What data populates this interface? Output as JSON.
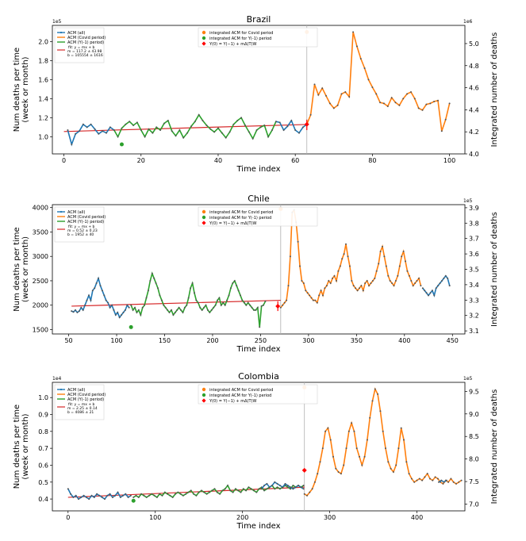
{
  "chart_data": [
    {
      "type": "line",
      "title": "Brazil",
      "xlabel": "Time index",
      "ylabel_lines": [
        "Num deaths per time",
        "(week or month)"
      ],
      "y2label": "Integrated number of deaths",
      "y_scale_label": "1e5",
      "y2_scale_label": "1e6",
      "xlim": [
        -3,
        104
      ],
      "ylim": [
        0.82,
        2.17
      ],
      "y2lim": [
        4.0,
        5.165
      ],
      "xticks": [
        0,
        20,
        40,
        60,
        80,
        100
      ],
      "yticks": [
        1.0,
        1.2,
        1.4,
        1.6,
        1.8,
        2.0
      ],
      "ytick_labels": [
        "1.0",
        "1.2",
        "1.4",
        "1.6",
        "1.8",
        "2.0"
      ],
      "y2ticks": [
        4.0,
        4.2,
        4.4,
        4.6,
        4.8,
        5.0
      ],
      "y2tick_labels": [
        "4.0",
        "4.2",
        "4.4",
        "4.6",
        "4.8",
        "5.0"
      ],
      "covid_start": 63,
      "legend_left": [
        "ACM (all)",
        "ACM (Covid period)",
        "ACM (Y(-1) period)"
      ],
      "fit_lines": [
        "fit: y = mx + b",
        "m = 117.2 ± 43.98",
        "b = 105554 ± 1616"
      ],
      "legend_center": [
        "integrated ACM for Covid period",
        "integrated ACM for Y(-1) period",
        "Y(0) = Y(−1) + mΔ(T)W"
      ],
      "series": [
        {
          "name": "ACM (all)",
          "x_start": 1,
          "values": [
            1.07,
            0.92,
            1.03,
            1.06,
            1.13,
            1.1,
            1.13,
            1.08,
            1.03,
            1.06,
            1.04,
            1.1,
            1.07
          ]
        },
        {
          "name": "ACM (Y(-1) period)",
          "x_start": 13,
          "values": [
            1.07,
            1.0,
            1.09,
            1.13,
            1.16,
            1.12,
            1.15,
            1.07,
            1.0,
            1.08,
            1.04,
            1.1,
            1.07,
            1.14,
            1.17,
            1.06,
            1.01,
            1.07,
            0.99,
            1.04,
            1.11,
            1.16,
            1.23,
            1.17,
            1.12,
            1.08,
            1.05,
            1.09,
            1.04,
            0.99,
            1.05,
            1.13,
            1.17,
            1.2,
            1.12,
            1.05,
            0.98,
            1.07,
            1.1,
            1.12,
            1.0,
            1.07,
            1.16
          ]
        },
        {
          "name": "ACM (all) tail",
          "x_start": 55,
          "values": [
            1.16,
            1.15,
            1.07,
            1.11,
            1.17,
            1.07,
            1.04,
            1.1,
            1.13
          ]
        },
        {
          "name": "ACM (Covid period)",
          "x_start": 63,
          "values": [
            1.13,
            1.23,
            1.55,
            1.44,
            1.51,
            1.43,
            1.35,
            1.3,
            1.33,
            1.45,
            1.47,
            1.42,
            2.1,
            1.95,
            1.82,
            1.72,
            1.6,
            1.52,
            1.45,
            1.36,
            1.35,
            1.32,
            1.41,
            1.36,
            1.33,
            1.4,
            1.45,
            1.47,
            1.4,
            1.3,
            1.28,
            1.34,
            1.35,
            1.37,
            1.38,
            1.06,
            1.18,
            1.35
          ]
        }
      ],
      "fit": {
        "x0": 0,
        "y0": 1.055,
        "x1": 63,
        "y1": 1.129
      },
      "integrated_covid": {
        "x": 63,
        "y": 2.1
      },
      "integrated_prev": {
        "x": 15,
        "y": 0.92
      },
      "y0_point": {
        "x": 63,
        "y": 1.13
      },
      "y0_bar": {
        "x": 63,
        "y0": 1.07,
        "y1": 1.18
      }
    },
    {
      "type": "line",
      "title": "Chile",
      "xlabel": "Time index",
      "ylabel_lines": [
        "Num deaths per time",
        "(week or month)"
      ],
      "y2label": "Integrated number of deaths",
      "y_scale_label": "",
      "y2_scale_label": "1e5",
      "xlim": [
        33,
        463
      ],
      "ylim": [
        1410,
        4060
      ],
      "y2lim": [
        3.08,
        3.92
      ],
      "xticks": [
        50,
        100,
        150,
        200,
        250,
        300,
        350,
        400,
        450
      ],
      "yticks": [
        1500,
        2000,
        2500,
        3000,
        3500,
        4000
      ],
      "ytick_labels": [
        "1500",
        "2000",
        "2500",
        "3000",
        "3500",
        "4000"
      ],
      "y2ticks": [
        3.1,
        3.2,
        3.3,
        3.4,
        3.5,
        3.6,
        3.7,
        3.8,
        3.9
      ],
      "y2tick_labels": [
        "3.1",
        "3.2",
        "3.3",
        "3.4",
        "3.5",
        "3.6",
        "3.7",
        "3.8",
        "3.9"
      ],
      "covid_start": 271,
      "legend_left": [
        "ACM (all)",
        "ACM (Covid period)",
        "ACM (Y(-1) period)"
      ],
      "fit_lines": [
        "fit: y = mx + b",
        "m = 0.52 ± 0.23",
        "b = 1952 ± 40"
      ],
      "legend_center": [
        "integrated ACM for Covid period",
        "integrated ACM for Y(-1) period",
        "Y(0) = Y(−1) + mΔ(T)W"
      ],
      "series": [
        {
          "name": "ACM (all)",
          "x_start": 53,
          "step": 2,
          "values": [
            1880,
            1860,
            1900,
            1850,
            1880,
            1950,
            1900,
            2000,
            2100,
            2200,
            2100,
            2300,
            2350,
            2450,
            2550,
            2400,
            2300,
            2200,
            2100,
            2050,
            1950,
            2000,
            1900,
            1800,
            1850,
            1750,
            1800,
            1850,
            1900,
            2000,
            1950
          ]
        },
        {
          "name": "ACM (Y(-1) period)",
          "x_start": 115,
          "step": 2,
          "values": [
            2000,
            1900,
            1950,
            1850,
            1900,
            1800,
            1950,
            2000,
            2150,
            2300,
            2500,
            2650,
            2550,
            2450,
            2350,
            2200,
            2100,
            2000,
            1950,
            1900,
            1850,
            1900,
            1800,
            1850,
            1900,
            1950,
            1900,
            1850,
            1950,
            2000,
            2150,
            2350,
            2450,
            2250,
            2100,
            2050,
            1950,
            1900,
            1950,
            2000,
            1900,
            1850,
            1900,
            1950,
            2000,
            2100,
            2150,
            2000,
            2050,
            2000,
            2100,
            2200,
            2350,
            2450,
            2500,
            2400,
            2300,
            2200,
            2100,
            2050,
            2000,
            2050,
            2000,
            1950,
            1900,
            1900,
            1950,
            1550,
            1980,
            2000,
            2080
          ]
        },
        {
          "name": "ACM (Covid period)",
          "x_start": 271,
          "step": 2,
          "values": [
            1950,
            2000,
            2050,
            2100,
            2400,
            3000,
            3900,
            3950,
            3700,
            3300,
            2800,
            2500,
            2450,
            2300,
            2250,
            2200,
            2150,
            2100,
            2100,
            2050,
            2200,
            2300,
            2200,
            2350,
            2400,
            2500,
            2450,
            2550,
            2600,
            2500,
            2700,
            2800,
            2950,
            3050,
            3250,
            3000,
            2800,
            2500,
            2400,
            2350,
            2300,
            2350,
            2400,
            2300,
            2450,
            2500,
            2400,
            2450,
            2500,
            2550,
            2700,
            2850,
            3100,
            3200,
            3000,
            2800,
            2600,
            2500,
            2450,
            2400,
            2500,
            2600,
            2800,
            3000,
            3100,
            2900,
            2700,
            2600,
            2500,
            2400,
            2450,
            2500,
            2550,
            2400
          ]
        },
        {
          "name": "ACM (all) tail",
          "x_start": 419,
          "step": 2,
          "values": [
            2350,
            2300,
            2250,
            2200,
            2250,
            2300,
            2200,
            2350,
            2400,
            2450,
            2500,
            2550,
            2600,
            2550,
            2400
          ]
        }
      ],
      "fit": {
        "x0": 53,
        "y0": 1980,
        "x1": 271,
        "y1": 2100
      },
      "integrated_covid": {
        "x": 271,
        "y": 3970
      },
      "integrated_prev": {
        "x": 115,
        "y": 1550
      },
      "y0_point": {
        "x": 268,
        "y": 1980
      },
      "y0_bar": {
        "x": 268,
        "y0": 1880,
        "y1": 2080
      }
    },
    {
      "type": "line",
      "title": "Colombia",
      "xlabel": "Time index",
      "ylabel_lines": [
        "Num deaths per time",
        "(week or month)"
      ],
      "y2label": "Integrated number of deaths",
      "y_scale_label": "1e4",
      "y2_scale_label": "1e5",
      "xlim": [
        -18,
        455
      ],
      "ylim": [
        0.33,
        1.09
      ],
      "y2lim": [
        6.85,
        9.7
      ],
      "xticks": [
        0,
        100,
        200,
        300,
        400
      ],
      "yticks": [
        0.4,
        0.5,
        0.6,
        0.7,
        0.8,
        0.9,
        1.0
      ],
      "ytick_labels": [
        "0.4",
        "0.5",
        "0.6",
        "0.7",
        "0.8",
        "0.9",
        "1.0"
      ],
      "y2ticks": [
        7.0,
        7.5,
        8.0,
        8.5,
        9.0,
        9.5
      ],
      "y2tick_labels": [
        "7.0",
        "7.5",
        "8.0",
        "8.5",
        "9.0",
        "9.5"
      ],
      "covid_start": 271,
      "legend_left": [
        "ACM (all)",
        "ACM (Covid period)",
        "ACM (Y(-1) period)"
      ],
      "fit_lines": [
        "fit: y = mx + b",
        "m = 2.25 ± 0.14",
        "b = 4086 ± 21"
      ],
      "legend_center": [
        "integrated ACM for Covid period",
        "integrated ACM for Y(-1) period",
        "Y(0) = Y(−1) + mΔ(T)W"
      ],
      "series": [
        {
          "name": "ACM (all)",
          "x_start": 0,
          "step": 3,
          "values": [
            0.46,
            0.43,
            0.41,
            0.42,
            0.4,
            0.41,
            0.42,
            0.41,
            0.4,
            0.42,
            0.41,
            0.43,
            0.42,
            0.41,
            0.4,
            0.42,
            0.43,
            0.41,
            0.42,
            0.44,
            0.41,
            0.42,
            0.43,
            0.41,
            0.42
          ]
        },
        {
          "name": "ACM (Y(-1) period)",
          "x_start": 75,
          "step": 3,
          "values": [
            0.41,
            0.42,
            0.41,
            0.43,
            0.42,
            0.41,
            0.42,
            0.43,
            0.42,
            0.41,
            0.43,
            0.42,
            0.44,
            0.43,
            0.42,
            0.41,
            0.43,
            0.44,
            0.43,
            0.42,
            0.43,
            0.44,
            0.45,
            0.43,
            0.42,
            0.44,
            0.45,
            0.44,
            0.43,
            0.44,
            0.45,
            0.46,
            0.44,
            0.43,
            0.45,
            0.46,
            0.48,
            0.45,
            0.44,
            0.46,
            0.45,
            0.44,
            0.46,
            0.45,
            0.47,
            0.46,
            0.45,
            0.44,
            0.46,
            0.47,
            0.45,
            0.46,
            0.47,
            0.48,
            0.46,
            0.47,
            0.46,
            0.47,
            0.48,
            0.47,
            0.46,
            0.48,
            0.47,
            0.48,
            0.47,
            0.48
          ]
        },
        {
          "name": "ACM (all) tail",
          "x_start": 222,
          "step": 3,
          "values": [
            0.46,
            0.48,
            0.49,
            0.47,
            0.48,
            0.5,
            0.49,
            0.48,
            0.47,
            0.49,
            0.48,
            0.47,
            0.46,
            0.47,
            0.48,
            0.47,
            0.46
          ]
        },
        {
          "name": "ACM (Covid period)",
          "x_start": 271,
          "step": 3,
          "values": [
            0.43,
            0.42,
            0.44,
            0.46,
            0.5,
            0.55,
            0.62,
            0.7,
            0.8,
            0.82,
            0.75,
            0.65,
            0.58,
            0.56,
            0.55,
            0.6,
            0.7,
            0.8,
            0.85,
            0.8,
            0.7,
            0.65,
            0.6,
            0.65,
            0.75,
            0.88,
            0.98,
            1.05,
            1.02,
            0.92,
            0.8,
            0.7,
            0.62,
            0.58,
            0.56,
            0.6,
            0.7,
            0.82,
            0.75,
            0.62,
            0.55,
            0.52,
            0.5,
            0.51,
            0.52,
            0.51,
            0.53,
            0.55,
            0.52,
            0.51,
            0.53,
            0.52,
            0.5,
            0.49,
            0.51,
            0.5,
            0.52,
            0.5,
            0.49,
            0.5,
            0.51
          ]
        },
        {
          "name": "ACM (all) end",
          "x_start": 425,
          "step": 3,
          "values": [
            0.5,
            0.51,
            0.5,
            0.51
          ]
        }
      ],
      "fit": {
        "x0": 0,
        "y0": 0.41,
        "x1": 271,
        "y1": 0.47
      },
      "integrated_covid": {
        "x": 271,
        "y": 1.06
      },
      "integrated_prev": {
        "x": 75,
        "y": 0.39
      },
      "y0_point": {
        "x": 271,
        "y": 0.57
      },
      "y0_bar": null
    }
  ],
  "colors": {
    "all": "#1f77b4",
    "covid": "#ff7f0e",
    "prev": "#2ca02c",
    "fit": "#d62728",
    "y0": "#ff0000",
    "marker": "#555555",
    "vline": "#b0b0b0"
  }
}
